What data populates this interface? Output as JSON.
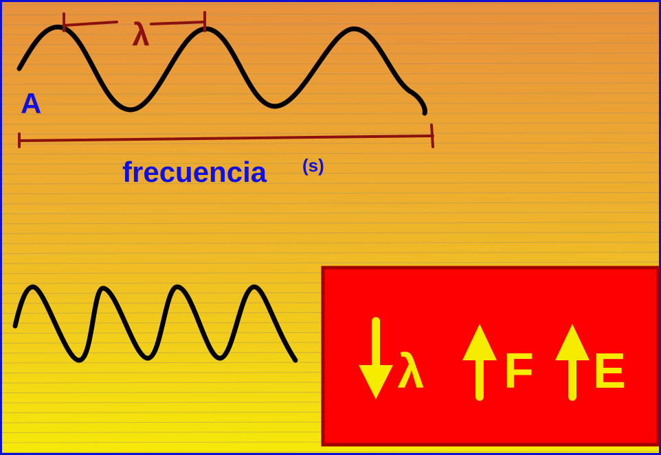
{
  "labels": {
    "wavelength": "λ",
    "amplitude": "A",
    "frequency": "frecuencia",
    "unit": "(s)"
  },
  "box": {
    "wavelength": "λ",
    "frequency": "F",
    "energy": "E"
  }
}
